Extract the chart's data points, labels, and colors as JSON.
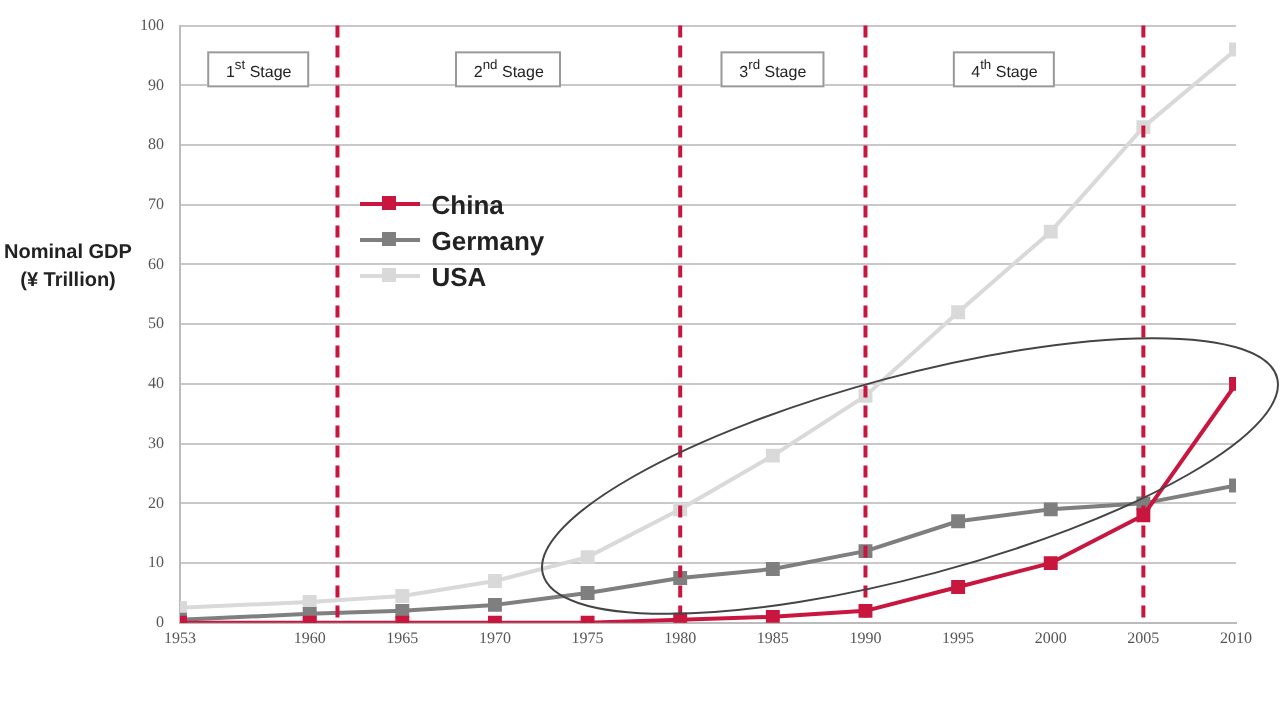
{
  "chart_data": {
    "type": "line",
    "ylabel": "Nominal GDP (¥ Trillion)",
    "x": [
      1953,
      1960,
      1965,
      1970,
      1975,
      1980,
      1985,
      1990,
      1995,
      2000,
      2005,
      2010
    ],
    "series": [
      {
        "name": "China",
        "color": "#c8163e",
        "values": [
          0,
          0,
          0,
          0,
          0,
          0.5,
          1,
          2,
          6,
          10,
          18,
          40
        ]
      },
      {
        "name": "Germany",
        "color": "#7f7f7f",
        "values": [
          0.5,
          1.5,
          2,
          3,
          5,
          7.5,
          9,
          12,
          17,
          19,
          20,
          23
        ]
      },
      {
        "name": "USA",
        "color": "#d9d9d9",
        "values": [
          2.5,
          3.5,
          4.5,
          7,
          11,
          19,
          28,
          38,
          52,
          65.5,
          83,
          96
        ]
      }
    ],
    "xlim": [
      1953,
      2010
    ],
    "xticks": [
      1953,
      1960,
      1965,
      1970,
      1975,
      1980,
      1985,
      1990,
      1995,
      2000,
      2005,
      2010
    ],
    "ylim": [
      0,
      100
    ],
    "yticks": [
      0,
      10,
      20,
      30,
      40,
      50,
      60,
      70,
      80,
      90,
      100
    ],
    "ref_lines": [
      {
        "axis": "x",
        "value": 1961.5,
        "color": "#c8163e",
        "line_style": "dashed"
      },
      {
        "axis": "x",
        "value": 1980,
        "color": "#c8163e",
        "line_style": "dashed"
      },
      {
        "axis": "x",
        "value": 1990,
        "color": "#c8163e",
        "line_style": "dashed"
      },
      {
        "axis": "x",
        "value": 2005,
        "color": "#c8163e",
        "line_style": "dashed"
      }
    ],
    "annotations": [
      "1$^{st}$ Stage",
      "2$^{nd}$ Stage",
      "3$^{rd}$ Stage",
      "4$^{th}$ Stage"
    ],
    "grid": "y",
    "legend": "left",
    "marker": "square",
    "line_style": "solid"
  }
}
